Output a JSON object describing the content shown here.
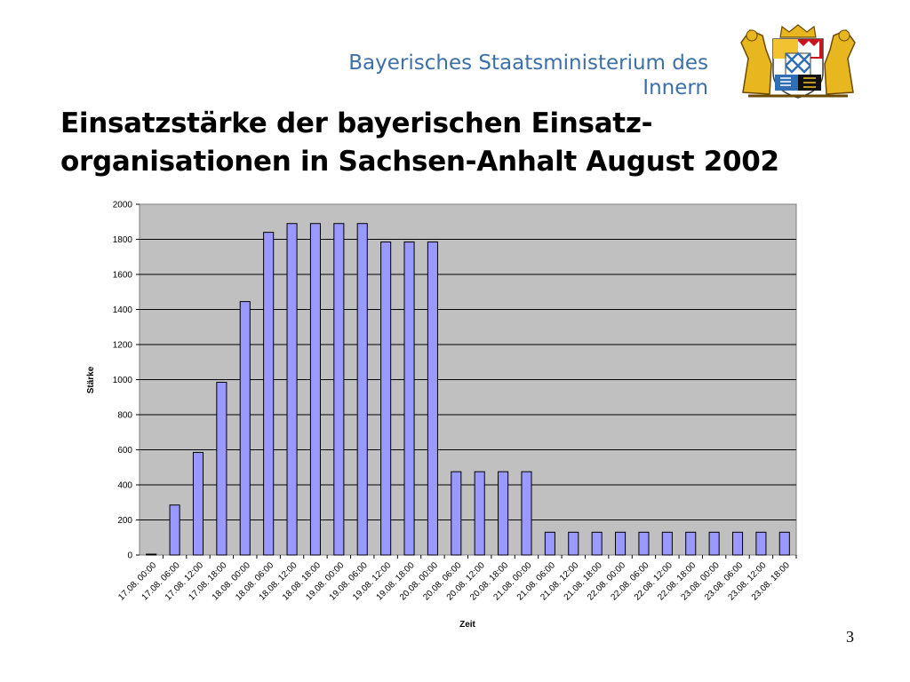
{
  "header": {
    "ministry_line1": "Bayerisches Staatsministerium des",
    "ministry_line2": "Innern",
    "crest_icon": "bavarian-coat-of-arms-icon"
  },
  "slide": {
    "title_line1": "Einsatzstärke der bayerischen Einsatz-",
    "title_line2": "organisationen in Sachsen-Anhalt August 2002",
    "page_number": "3"
  },
  "colors": {
    "ministry_text": "#3d6fa8",
    "bar_fill": "#9999ff",
    "plot_background": "#c0c0c0"
  },
  "chart_data": {
    "type": "bar",
    "title": "",
    "xlabel": "Zeit",
    "ylabel": "Stärke",
    "ylim": [
      0,
      2000
    ],
    "yticks": [
      0,
      200,
      400,
      600,
      800,
      1000,
      1200,
      1400,
      1600,
      1800,
      2000
    ],
    "grid": true,
    "legend": "none",
    "categories": [
      "17.08. 00:00",
      "17.08. 06:00",
      "17.08. 12:00",
      "17.08. 18:00",
      "18.08. 00:00",
      "18.08. 06:00",
      "18.08. 12:00",
      "18.08. 18:00",
      "19.08. 00:00",
      "19.08. 06:00",
      "19.08. 12:00",
      "19.08. 18:00",
      "20.08. 00:00",
      "20.08. 06:00",
      "20.08. 12:00",
      "20.08. 18:00",
      "21.08. 00:00",
      "21.08. 06:00",
      "21.08. 12:00",
      "21.08. 18:00",
      "22.08. 00:00",
      "22.08. 06:00",
      "22.08. 12:00",
      "22.08. 18:00",
      "23.08. 00:00",
      "23.08. 06:00",
      "23.08. 12:00",
      "23.08. 18:00"
    ],
    "values": [
      5,
      285,
      585,
      985,
      1445,
      1840,
      1890,
      1890,
      1890,
      1890,
      1785,
      1785,
      1785,
      475,
      475,
      475,
      475,
      130,
      130,
      130,
      130,
      130,
      130,
      130,
      130,
      130,
      130,
      130
    ]
  }
}
